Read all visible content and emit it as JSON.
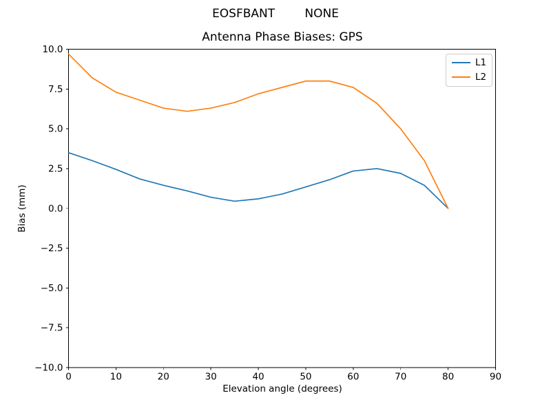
{
  "header": {
    "suptitle": "EOSFBANT        NONE"
  },
  "chart_data": {
    "type": "line",
    "title": "Antenna Phase Biases: GPS",
    "xlabel": "Elevation angle (degrees)",
    "ylabel": "Bias (mm)",
    "xlim": [
      0,
      90
    ],
    "ylim": [
      -10,
      10
    ],
    "grid": false,
    "legend_position": "upper right",
    "x": [
      0,
      5,
      10,
      15,
      20,
      25,
      30,
      35,
      40,
      45,
      50,
      55,
      60,
      65,
      70,
      75,
      80
    ],
    "series": [
      {
        "name": "L1",
        "color": "#1f77b4",
        "values": [
          3.5,
          3.0,
          2.45,
          1.85,
          1.45,
          1.1,
          0.7,
          0.45,
          0.6,
          0.9,
          1.35,
          1.8,
          2.35,
          2.5,
          2.2,
          1.45,
          0.0
        ]
      },
      {
        "name": "L2",
        "color": "#ff7f0e",
        "values": [
          9.7,
          8.2,
          7.3,
          6.8,
          6.3,
          6.1,
          6.3,
          6.65,
          7.2,
          7.6,
          8.0,
          8.0,
          7.6,
          6.6,
          5.0,
          3.0,
          0.0
        ]
      }
    ],
    "x_ticks": [
      {
        "value": 0,
        "label": "0"
      },
      {
        "value": 10,
        "label": "10"
      },
      {
        "value": 20,
        "label": "20"
      },
      {
        "value": 30,
        "label": "30"
      },
      {
        "value": 40,
        "label": "40"
      },
      {
        "value": 50,
        "label": "50"
      },
      {
        "value": 60,
        "label": "60"
      },
      {
        "value": 70,
        "label": "70"
      },
      {
        "value": 80,
        "label": "80"
      },
      {
        "value": 90,
        "label": "90"
      }
    ],
    "y_ticks": [
      {
        "value": 10,
        "label": "10.0"
      },
      {
        "value": 7.5,
        "label": "7.5"
      },
      {
        "value": 5,
        "label": "5.0"
      },
      {
        "value": 2.5,
        "label": "2.5"
      },
      {
        "value": 0,
        "label": "0.0"
      },
      {
        "value": -2.5,
        "label": "−2.5"
      },
      {
        "value": -5,
        "label": "−5.0"
      },
      {
        "value": -7.5,
        "label": "−7.5"
      },
      {
        "value": -10,
        "label": "−10.0"
      }
    ]
  },
  "colors": {
    "spine": "#000000",
    "background": "#ffffff",
    "legend_border": "#cccccc"
  }
}
